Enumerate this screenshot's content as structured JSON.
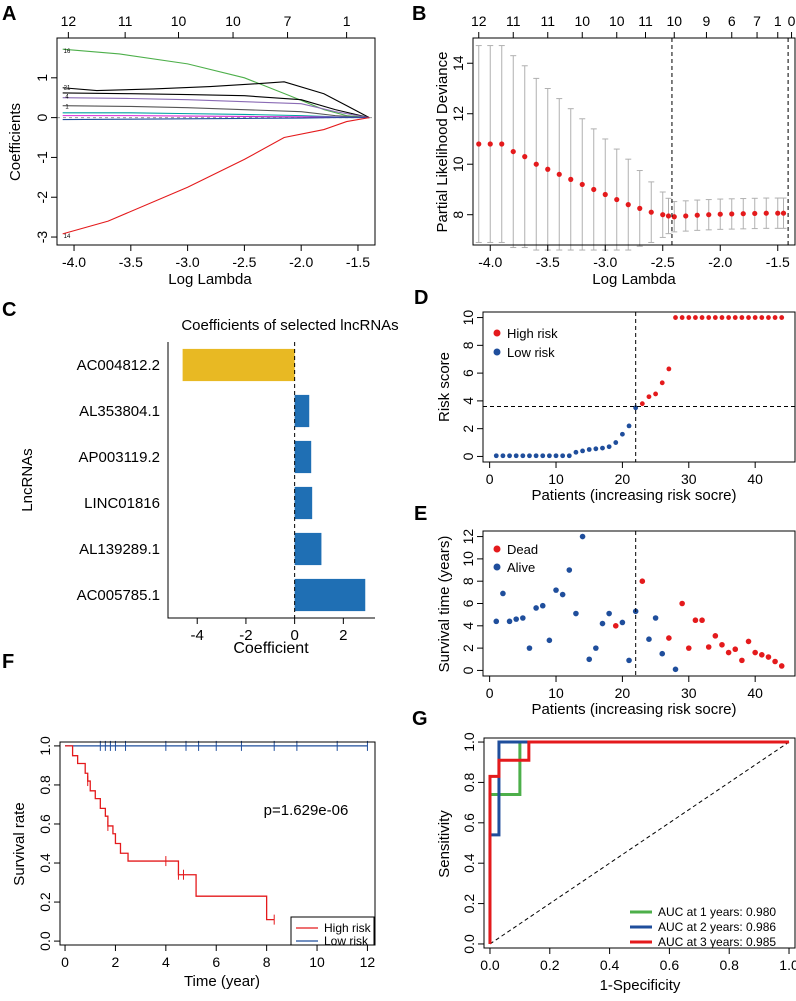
{
  "colors": {
    "red": "#e41a1c",
    "blue": "#1f4e9c",
    "green": "#4daf4a",
    "yellow": "#e8b923",
    "barblue": "#1f6fb4",
    "gray": "#b0b0b0",
    "black": "#000000"
  },
  "chart_data": [
    {
      "panel": "A",
      "type": "line",
      "xlabel": "Log Lambda",
      "ylabel": "Coefficients",
      "xlim": [
        -4.15,
        -1.35
      ],
      "ylim": [
        -3.2,
        2.0
      ],
      "xticks": [
        "-4.0",
        "-3.5",
        "-3.0",
        "-2.5",
        "-2.0",
        "-1.5"
      ],
      "yticks": [
        "-3",
        "-2",
        "-1",
        "0",
        "1"
      ],
      "top_axis": [
        "12",
        "11",
        "10",
        "10",
        "7",
        "1"
      ],
      "line_labels": [
        "16",
        "21",
        "4",
        "1",
        "14"
      ],
      "series": [
        {
          "color": "green",
          "x": [
            -4.1,
            -3.6,
            -3.0,
            -2.5,
            -2.1,
            -1.8,
            -1.6,
            -1.4
          ],
          "y": [
            1.72,
            1.6,
            1.35,
            1.0,
            0.55,
            0.2,
            0.05,
            0
          ]
        },
        {
          "color": "black",
          "x": [
            -4.1,
            -3.8,
            -3.3,
            -2.8,
            -2.4,
            -2.15,
            -1.8,
            -1.6,
            -1.4
          ],
          "y": [
            0.75,
            0.68,
            0.72,
            0.78,
            0.85,
            0.9,
            0.6,
            0.3,
            0
          ]
        },
        {
          "color": "black",
          "x": [
            -4.1,
            -3.5,
            -3.0,
            -2.5,
            -2.0,
            -1.7,
            -1.4
          ],
          "y": [
            0.62,
            0.6,
            0.58,
            0.55,
            0.45,
            0.2,
            0
          ]
        },
        {
          "color": "#8a6bb5",
          "x": [
            -4.1,
            -3.5,
            -3.0,
            -2.5,
            -2.0,
            -1.7,
            -1.4
          ],
          "y": [
            0.5,
            0.48,
            0.45,
            0.4,
            0.35,
            0.15,
            0
          ]
        },
        {
          "color": "#555555",
          "x": [
            -4.1,
            -3.5,
            -3.0,
            -2.5,
            -2.0,
            -1.7,
            -1.4
          ],
          "y": [
            0.3,
            0.28,
            0.25,
            0.2,
            0.15,
            0.05,
            0
          ]
        },
        {
          "color": "#00a0a0",
          "x": [
            -4.1,
            -3.5,
            -3.0,
            -2.5,
            -2.0,
            -1.7,
            -1.4
          ],
          "y": [
            0.12,
            0.12,
            0.1,
            0.08,
            0.05,
            0.02,
            0
          ]
        },
        {
          "color": "#d62ad6",
          "x": [
            -4.1,
            -3.5,
            -3.0,
            -2.5,
            -2.0,
            -1.7,
            -1.4
          ],
          "y": [
            0.05,
            0.05,
            0.04,
            0.03,
            0.02,
            0.01,
            0
          ]
        },
        {
          "color": "blue",
          "x": [
            -4.1,
            -3.5,
            -3.0,
            -2.5,
            -2.0,
            -1.7,
            -1.4
          ],
          "y": [
            -0.05,
            -0.04,
            -0.03,
            -0.02,
            -0.01,
            0,
            0
          ]
        },
        {
          "color": "red",
          "x": [
            -4.1,
            -3.7,
            -3.0,
            -2.5,
            -2.15,
            -1.8,
            -1.6,
            -1.4
          ],
          "y": [
            -2.92,
            -2.6,
            -1.75,
            -1.05,
            -0.5,
            -0.3,
            -0.1,
            0
          ]
        }
      ]
    },
    {
      "panel": "B",
      "type": "scatter",
      "xlabel": "Log Lambda",
      "ylabel": "Partial Likelihood Deviance",
      "xlim": [
        -4.15,
        -1.35
      ],
      "ylim": [
        6.8,
        15.0
      ],
      "xticks": [
        "-4.0",
        "-3.5",
        "-3.0",
        "-2.5",
        "-2.0",
        "-1.5"
      ],
      "yticks": [
        "8",
        "10",
        "12",
        "14"
      ],
      "top_axis": [
        "12",
        "11",
        "11",
        "10",
        "10",
        "11",
        "10",
        "9",
        "6",
        "7",
        "1",
        "0"
      ],
      "vlines": [
        -2.42,
        -1.41
      ],
      "x": [
        -4.1,
        -4.0,
        -3.9,
        -3.8,
        -3.7,
        -3.6,
        -3.5,
        -3.4,
        -3.3,
        -3.2,
        -3.1,
        -3.0,
        -2.9,
        -2.8,
        -2.7,
        -2.6,
        -2.5,
        -2.45,
        -2.4,
        -2.3,
        -2.2,
        -2.1,
        -2.0,
        -1.9,
        -1.8,
        -1.7,
        -1.6,
        -1.5,
        -1.45
      ],
      "y": [
        10.8,
        10.8,
        10.8,
        10.5,
        10.3,
        10.0,
        9.8,
        9.6,
        9.4,
        9.2,
        9.0,
        8.8,
        8.6,
        8.4,
        8.25,
        8.1,
        8.0,
        7.95,
        7.92,
        7.95,
        7.98,
        8.0,
        8.02,
        8.03,
        8.04,
        8.05,
        8.06,
        8.06,
        8.06
      ],
      "err": [
        3.9,
        3.9,
        3.9,
        3.8,
        3.6,
        3.4,
        3.2,
        3.0,
        2.8,
        2.6,
        2.4,
        2.2,
        2.0,
        1.8,
        1.5,
        1.2,
        0.9,
        0.7,
        0.6,
        0.6,
        0.6,
        0.6,
        0.6,
        0.6,
        0.6,
        0.6,
        0.6,
        0.6,
        0.6
      ]
    },
    {
      "panel": "C",
      "type": "bar",
      "title": "Coefficients of selected lncRNAs",
      "xlabel": "Coefficient",
      "ylabel": "LncRNAs",
      "xlim": [
        -5.2,
        3.3
      ],
      "xticks": [
        "-4",
        "-2",
        "0",
        "2"
      ],
      "categories": [
        "AC004812.2",
        "AL353804.1",
        "AP003119.2",
        "LINC01816",
        "AL139289.1",
        "AC005785.1"
      ],
      "values": [
        -4.6,
        0.6,
        0.68,
        0.72,
        1.1,
        2.9
      ]
    },
    {
      "panel": "D",
      "type": "scatter",
      "xlabel": "Patients (increasing risk socre)",
      "ylabel": "Risk score",
      "xlim": [
        -1,
        46
      ],
      "ylim": [
        -0.4,
        10.4
      ],
      "xticks": [
        "0",
        "10",
        "20",
        "30",
        "40"
      ],
      "yticks": [
        "0",
        "2",
        "4",
        "6",
        "8",
        "10"
      ],
      "legend": [
        "High risk",
        "Low risk"
      ],
      "cutoff": {
        "x": 22,
        "y": 3.6
      },
      "values": [
        0.05,
        0.05,
        0.05,
        0.05,
        0.05,
        0.05,
        0.05,
        0.05,
        0.05,
        0.05,
        0.05,
        0.05,
        0.3,
        0.4,
        0.5,
        0.55,
        0.6,
        0.7,
        1.0,
        1.6,
        2.2,
        3.5,
        3.8,
        4.3,
        4.5,
        5.3,
        6.3,
        10,
        10,
        10,
        10,
        10,
        10,
        10,
        10,
        10,
        10,
        10,
        10,
        10,
        10,
        10,
        10,
        10
      ]
    },
    {
      "panel": "E",
      "type": "scatter",
      "xlabel": "Patients (increasing risk socre)",
      "ylabel": "Survival time (years)",
      "xlim": [
        -1,
        46
      ],
      "ylim": [
        -0.5,
        12.5
      ],
      "xticks": [
        "0",
        "10",
        "20",
        "30",
        "40"
      ],
      "yticks": [
        "0",
        "2",
        "4",
        "6",
        "8",
        "10",
        "12"
      ],
      "legend": [
        "Dead",
        "Alive"
      ],
      "cutoff": {
        "x": 22
      },
      "values": [
        4.4,
        6.9,
        4.4,
        4.6,
        4.7,
        2.0,
        5.6,
        5.8,
        2.7,
        7.2,
        6.8,
        9.0,
        5.1,
        12.0,
        1.0,
        2.0,
        4.2,
        5.1,
        4.0,
        4.3,
        0.9,
        5.3,
        8.0,
        2.8,
        4.7,
        1.5,
        2.9,
        0.1,
        6.0,
        2.0,
        4.5,
        4.5,
        2.1,
        3.1,
        2.3,
        1.6,
        1.9,
        0.9,
        2.6,
        1.6,
        1.4,
        1.2,
        0.8,
        0.4
      ],
      "dead": [
        0,
        0,
        0,
        0,
        0,
        0,
        0,
        0,
        0,
        0,
        0,
        0,
        0,
        0,
        0,
        0,
        0,
        0,
        1,
        0,
        0,
        0,
        1,
        0,
        0,
        0,
        1,
        0,
        1,
        1,
        1,
        1,
        1,
        1,
        1,
        1,
        1,
        1,
        1,
        1,
        1,
        1,
        1,
        1
      ]
    },
    {
      "panel": "F",
      "type": "line",
      "xlabel": "Time (year)",
      "ylabel": "Survival rate",
      "xlim": [
        -0.2,
        12.3
      ],
      "ylim": [
        -0.02,
        1.02
      ],
      "xticks": [
        "0",
        "2",
        "4",
        "6",
        "8",
        "10",
        "12"
      ],
      "yticks": [
        "0.0",
        "0.2",
        "0.4",
        "0.6",
        "0.8",
        "1.0"
      ],
      "pvalue": "p=1.629e-06",
      "legend": [
        "High risk",
        "Low risk"
      ],
      "low_censor": [
        1.4,
        1.6,
        1.8,
        2.0,
        2.4,
        4.0,
        4.8,
        5.3,
        6.0,
        7.0,
        8.3,
        9.2,
        10.8,
        12.0
      ],
      "high_steps_x": [
        0,
        0.3,
        0.5,
        0.8,
        0.9,
        1.0,
        1.2,
        1.4,
        1.6,
        1.7,
        1.9,
        2.0,
        2.2,
        2.5,
        2.8,
        4.0,
        4.5,
        5.2,
        8.0,
        8.3
      ],
      "high_steps_y": [
        1.0,
        0.95,
        0.91,
        0.86,
        0.82,
        0.77,
        0.73,
        0.68,
        0.64,
        0.59,
        0.55,
        0.5,
        0.45,
        0.41,
        0.41,
        0.41,
        0.34,
        0.23,
        0.11,
        0.11
      ],
      "high_censor": [
        0.9,
        1.7,
        4.0,
        4.5,
        4.7,
        8.3
      ]
    },
    {
      "panel": "G",
      "type": "line",
      "xlabel": "1-Specificity",
      "ylabel": "Sensitivity",
      "xlim": [
        -0.02,
        1.02
      ],
      "ylim": [
        -0.02,
        1.02
      ],
      "xticks": [
        "0.0",
        "0.2",
        "0.4",
        "0.6",
        "0.8",
        "1.0"
      ],
      "yticks": [
        "0.0",
        "0.2",
        "0.4",
        "0.6",
        "0.8",
        "1.0"
      ],
      "series": [
        {
          "name": "AUC at 1 years: 0.980",
          "color": "green",
          "x": [
            0,
            0,
            0.04,
            0.04,
            0.1,
            0.1,
            1.0
          ],
          "y": [
            0,
            0.74,
            0.74,
            0.74,
            0.74,
            1.0,
            1.0
          ]
        },
        {
          "name": "AUC at 2 years: 0.986",
          "color": "blue",
          "x": [
            0,
            0,
            0.03,
            0.03,
            1.0
          ],
          "y": [
            0,
            0.54,
            0.54,
            1.0,
            1.0
          ]
        },
        {
          "name": "AUC at 3 years: 0.985",
          "color": "red",
          "x": [
            0,
            0,
            0.03,
            0.03,
            0.13,
            0.13,
            1.0
          ],
          "y": [
            0,
            0.83,
            0.83,
            0.91,
            0.91,
            1.0,
            1.0
          ]
        }
      ]
    }
  ],
  "panels": {
    "A": "A",
    "B": "B",
    "C": "C",
    "D": "D",
    "E": "E",
    "F": "F",
    "G": "G"
  }
}
